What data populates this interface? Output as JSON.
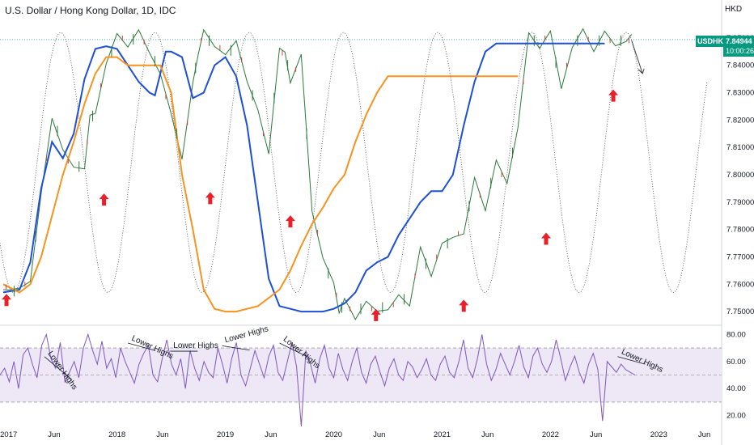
{
  "title": "U.S. Dollar / Hong Kong Dollar, 1D, IDC",
  "currency_unit": "HKD",
  "price_badge": {
    "symbol": "USDHKD",
    "price": "7.84944",
    "countdown": "10:00:26"
  },
  "colors": {
    "price": "#2b7a3b",
    "ma_fast": "#1e4fd8",
    "ma_slow": "#f7931e",
    "cycle": "#555555",
    "arrow": "#e8202a",
    "rsi": "#7e57c2",
    "rsi_band": "#ede7f6",
    "badge": "#089981"
  },
  "chart_data": [
    {
      "type": "line",
      "title": "",
      "ylim": [
        7.745,
        7.855
      ],
      "y_ticks": [
        "7.75000",
        "7.76000",
        "7.77000",
        "7.78000",
        "7.79000",
        "7.80000",
        "7.81000",
        "7.82000",
        "7.83000",
        "7.84000",
        "7.85000"
      ],
      "x_ticks": [
        "2017",
        "Jun",
        "2018",
        "Jun",
        "2019",
        "Jun",
        "2020",
        "Jun",
        "2021",
        "Jun",
        "2022",
        "Jun",
        "2023",
        "Jun"
      ],
      "series": [
        {
          "role": "price",
          "x": [
            2016.95,
            2017.0,
            2017.1,
            2017.2,
            2017.3,
            2017.4,
            2017.5,
            2017.6,
            2017.7,
            2017.75,
            2017.8,
            2017.9,
            2018.0,
            2018.1,
            2018.2,
            2018.3,
            2018.4,
            2018.5,
            2018.6,
            2018.7,
            2018.75,
            2018.8,
            2018.9,
            2019.0,
            2019.1,
            2019.2,
            2019.3,
            2019.4,
            2019.5,
            2019.55,
            2019.6,
            2019.7,
            2019.8,
            2019.9,
            2020.0,
            2020.05,
            2020.1,
            2020.2,
            2020.3,
            2020.4,
            2020.5,
            2020.6,
            2020.7,
            2020.8,
            2020.9,
            2021.0,
            2021.1,
            2021.2,
            2021.3,
            2021.4,
            2021.5,
            2021.6,
            2021.7,
            2021.8,
            2021.9,
            2022.0,
            2022.1,
            2022.2,
            2022.3,
            2022.4,
            2022.5,
            2022.6,
            2022.7,
            2022.75
          ],
          "values": [
            7.758,
            7.76,
            7.755,
            7.765,
            7.79,
            7.822,
            7.81,
            7.8,
            7.806,
            7.818,
            7.825,
            7.84,
            7.85,
            7.85,
            7.849,
            7.848,
            7.835,
            7.822,
            7.808,
            7.83,
            7.848,
            7.85,
            7.848,
            7.845,
            7.846,
            7.838,
            7.82,
            7.81,
            7.846,
            7.843,
            7.837,
            7.84,
            7.79,
            7.768,
            7.76,
            7.752,
            7.751,
            7.751,
            7.751,
            7.751,
            7.752,
            7.753,
            7.756,
            7.77,
            7.765,
            7.775,
            7.775,
            7.782,
            7.795,
            7.79,
            7.804,
            7.796,
            7.82,
            7.848,
            7.85,
            7.85,
            7.832,
            7.848,
            7.85,
            7.849,
            7.849,
            7.849,
            7.849,
            7.849
          ]
        },
        {
          "role": "ma_fast",
          "x": [
            2016.95,
            2017.1,
            2017.2,
            2017.3,
            2017.4,
            2017.5,
            2017.6,
            2017.7,
            2017.8,
            2017.9,
            2018.0,
            2018.1,
            2018.2,
            2018.3,
            2018.35,
            2018.45,
            2018.5,
            2018.6,
            2018.7,
            2018.8,
            2018.9,
            2019.0,
            2019.1,
            2019.2,
            2019.3,
            2019.4,
            2019.5,
            2019.6,
            2019.7,
            2019.8,
            2019.9,
            2020.0,
            2020.1,
            2020.2,
            2020.3,
            2020.4,
            2020.5,
            2020.6,
            2020.7,
            2020.8,
            2020.9,
            2021.0,
            2021.1,
            2021.2,
            2021.3,
            2021.4,
            2021.5,
            2021.6,
            2021.7,
            2021.8,
            2021.9,
            2022.0,
            2022.1,
            2022.2,
            2022.3,
            2022.4,
            2022.5
          ],
          "values": [
            7.757,
            7.758,
            7.768,
            7.795,
            7.812,
            7.806,
            7.815,
            7.835,
            7.846,
            7.847,
            7.846,
            7.84,
            7.834,
            7.83,
            7.829,
            7.845,
            7.845,
            7.843,
            7.828,
            7.83,
            7.84,
            7.843,
            7.836,
            7.818,
            7.79,
            7.762,
            7.752,
            7.751,
            7.75,
            7.75,
            7.75,
            7.751,
            7.753,
            7.757,
            7.765,
            7.768,
            7.77,
            7.778,
            7.784,
            7.79,
            7.794,
            7.794,
            7.8,
            7.818,
            7.834,
            7.845,
            7.848,
            7.848,
            7.848,
            7.848,
            7.848,
            7.848,
            7.848,
            7.848,
            7.848,
            7.848,
            7.848
          ]
        },
        {
          "role": "ma_slow",
          "x": [
            2016.95,
            2017.1,
            2017.2,
            2017.3,
            2017.4,
            2017.5,
            2017.6,
            2017.7,
            2017.8,
            2017.9,
            2018.0,
            2018.1,
            2018.2,
            2018.3,
            2018.4,
            2018.5,
            2018.6,
            2018.7,
            2018.8,
            2018.9,
            2019.0,
            2019.1,
            2019.2,
            2019.3,
            2019.4,
            2019.5,
            2019.6,
            2019.7,
            2019.8,
            2019.9,
            2020.0,
            2020.1,
            2020.2,
            2020.3,
            2020.4,
            2020.5,
            2020.6,
            2020.7,
            2020.8,
            2020.9,
            2021.0,
            2021.1,
            2021.2,
            2021.3,
            2021.4,
            2021.5,
            2021.6,
            2021.7
          ],
          "values": [
            7.76,
            7.757,
            7.76,
            7.77,
            7.785,
            7.8,
            7.812,
            7.826,
            7.837,
            7.843,
            7.843,
            7.84,
            7.84,
            7.84,
            7.84,
            7.83,
            7.8,
            7.78,
            7.758,
            7.751,
            7.75,
            7.75,
            7.751,
            7.752,
            7.755,
            7.758,
            7.765,
            7.774,
            7.782,
            7.788,
            7.795,
            7.8,
            7.812,
            7.822,
            7.83,
            7.836,
            7.836,
            7.836,
            7.836,
            7.836,
            7.836,
            7.836,
            7.836,
            7.836,
            7.836,
            7.836,
            7.836,
            7.836
          ]
        },
        {
          "role": "projection",
          "x": [
            2022.75,
            2022.85
          ],
          "values": [
            7.849,
            7.837
          ]
        }
      ],
      "cycle": {
        "period_years": 0.87,
        "phase_peak_year": 2017.48,
        "min": 7.757,
        "max": 7.852,
        "x_end": 2023.45
      },
      "markers": [
        {
          "x": 2016.98,
          "y": 7.7538
        },
        {
          "x": 2017.88,
          "y": 7.7905
        },
        {
          "x": 2018.86,
          "y": 7.791
        },
        {
          "x": 2019.6,
          "y": 7.7825
        },
        {
          "x": 2020.39,
          "y": 7.7483
        },
        {
          "x": 2021.2,
          "y": 7.7517
        },
        {
          "x": 2021.96,
          "y": 7.7762
        },
        {
          "x": 2022.58,
          "y": 7.8285
        }
      ]
    },
    {
      "type": "line",
      "role": "rsi",
      "ylim": [
        15,
        85
      ],
      "y_ticks": [
        "80.00",
        "60.00",
        "40.00",
        "20.00"
      ],
      "band": [
        30,
        70
      ],
      "midline": 50,
      "values": [
        50,
        55,
        45,
        60,
        40,
        65,
        70,
        58,
        48,
        72,
        80,
        62,
        55,
        74,
        45,
        52,
        60,
        48,
        70,
        80,
        68,
        58,
        75,
        55,
        62,
        48,
        70,
        60,
        52,
        44,
        58,
        66,
        72,
        50,
        45,
        62,
        76,
        58,
        50,
        62,
        40,
        68,
        55,
        46,
        60,
        52,
        48,
        70,
        58,
        44,
        62,
        74,
        50,
        42,
        55,
        68,
        58,
        48,
        64,
        72,
        52,
        46,
        60,
        74,
        56,
        12,
        68,
        58,
        44,
        62,
        72,
        55,
        48,
        66,
        54,
        46,
        60,
        70,
        52,
        44,
        58,
        64,
        52,
        42,
        55,
        62,
        50,
        46,
        60,
        56,
        48,
        54,
        62,
        50,
        46,
        58,
        64,
        52,
        48,
        60,
        76,
        55,
        48,
        62,
        80,
        58,
        46,
        54,
        66,
        58,
        50,
        60,
        72,
        56,
        48,
        64,
        70,
        58,
        52,
        60,
        76,
        62,
        46,
        56,
        64,
        52,
        44,
        58,
        66,
        54,
        16,
        60,
        56,
        52,
        58,
        54,
        52,
        50
      ],
      "annotations": [
        "Lower Highs",
        "Lower Highs",
        "Lower Highs",
        "Lower Highs",
        "Lower Highs",
        "Lower Highs"
      ]
    }
  ]
}
